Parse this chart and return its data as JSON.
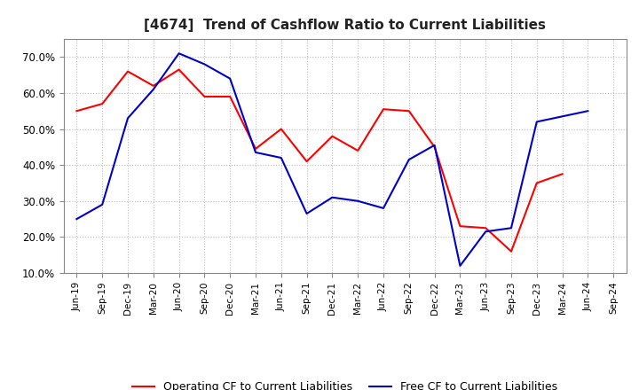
{
  "title": "[4674]  Trend of Cashflow Ratio to Current Liabilities",
  "x_labels": [
    "Jun-19",
    "Sep-19",
    "Dec-19",
    "Mar-20",
    "Jun-20",
    "Sep-20",
    "Dec-20",
    "Mar-21",
    "Jun-21",
    "Sep-21",
    "Dec-21",
    "Mar-22",
    "Jun-22",
    "Sep-22",
    "Dec-22",
    "Mar-23",
    "Jun-23",
    "Sep-23",
    "Dec-23",
    "Mar-24",
    "Jun-24",
    "Sep-24"
  ],
  "operating_cf": [
    55.0,
    57.0,
    66.0,
    62.0,
    66.5,
    59.0,
    59.0,
    44.5,
    50.0,
    41.0,
    48.0,
    44.0,
    55.5,
    55.0,
    45.0,
    23.0,
    22.5,
    16.0,
    35.0,
    37.5,
    null,
    null
  ],
  "free_cf": [
    25.0,
    29.0,
    53.0,
    61.0,
    71.0,
    68.0,
    64.0,
    43.5,
    42.0,
    26.5,
    31.0,
    30.0,
    28.0,
    41.5,
    45.5,
    12.0,
    21.5,
    22.5,
    52.0,
    53.5,
    55.0,
    null
  ],
  "ylim": [
    10.0,
    75.0
  ],
  "yticks": [
    10.0,
    20.0,
    30.0,
    40.0,
    50.0,
    60.0,
    70.0
  ],
  "operating_color": "#FF0000",
  "free_color": "#0000CC",
  "background_color": "#FFFFFF",
  "grid_color": "#BBBBBB",
  "legend_labels": [
    "Operating CF to Current Liabilities",
    "Free CF to Current Liabilities"
  ]
}
